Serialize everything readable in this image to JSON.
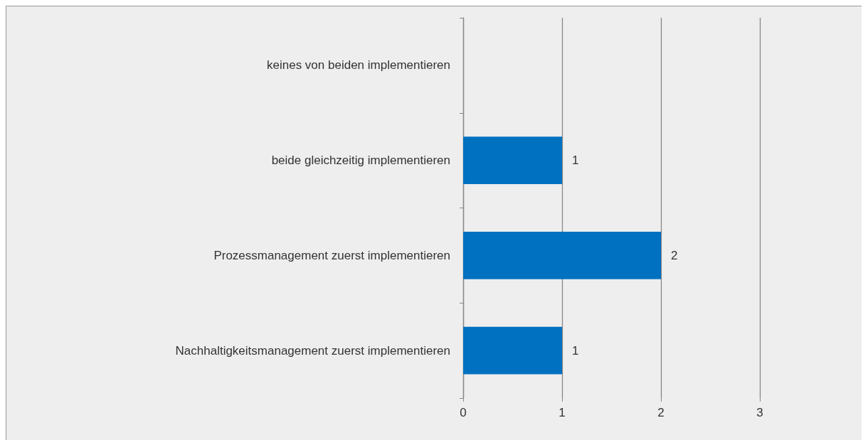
{
  "chart_data": {
    "type": "bar",
    "orientation": "horizontal",
    "categories": [
      "keines von beiden implementieren",
      "beide gleichzeitig implementieren",
      "Prozessmanagement zuerst implementieren",
      "Nachhaltigkeitsmanagement zuerst implementieren"
    ],
    "values": [
      0,
      1,
      2,
      1
    ],
    "value_labels": [
      null,
      "1",
      "2",
      "1"
    ],
    "color": "#0070c0",
    "xlim": [
      0,
      3
    ],
    "xticks": [
      0,
      1,
      2,
      3
    ],
    "grid": "x"
  }
}
